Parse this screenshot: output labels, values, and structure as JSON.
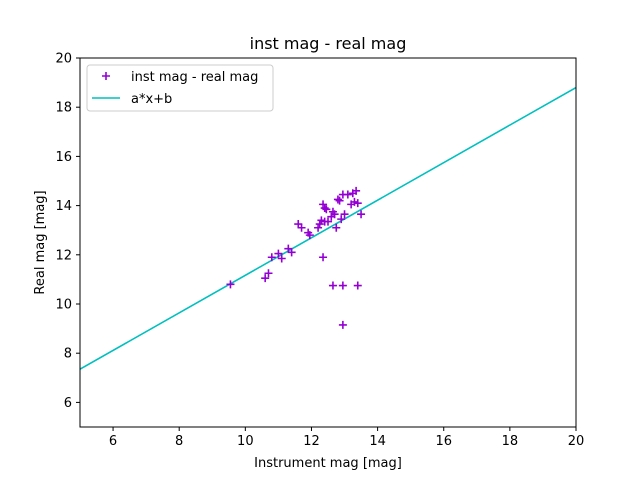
{
  "chart_data": {
    "type": "scatter",
    "title": "inst mag - real mag",
    "xlabel": "Instrument mag [mag]",
    "ylabel": "Real mag [mag]",
    "xlim": [
      5,
      20
    ],
    "ylim": [
      5,
      20
    ],
    "xticks": [
      "6",
      "8",
      "10",
      "12",
      "14",
      "16",
      "18",
      "20"
    ],
    "yticks": [
      "6",
      "8",
      "10",
      "12",
      "14",
      "16",
      "18",
      "20"
    ],
    "grid": false,
    "legend_position": "top-left",
    "series": [
      {
        "name": "inst mag - real mag",
        "kind": "scatter",
        "marker": "plus",
        "color": "#9400d3",
        "x": [
          9.55,
          10.6,
          10.7,
          10.8,
          11.0,
          11.1,
          11.3,
          11.4,
          11.6,
          11.7,
          11.9,
          11.95,
          12.2,
          12.25,
          12.3,
          12.35,
          12.4,
          12.4,
          12.45,
          12.5,
          12.6,
          12.65,
          12.7,
          12.75,
          12.8,
          12.85,
          12.9,
          12.95,
          13.0,
          13.1,
          13.2,
          13.25,
          13.3,
          13.35,
          13.4,
          13.5,
          12.35,
          12.65,
          12.95,
          13.4,
          12.95
        ],
        "y": [
          10.8,
          11.05,
          11.25,
          11.9,
          12.05,
          11.85,
          12.25,
          12.1,
          13.25,
          13.1,
          12.9,
          12.8,
          13.1,
          13.25,
          13.4,
          14.05,
          13.9,
          13.35,
          13.85,
          13.35,
          13.55,
          13.75,
          13.65,
          13.1,
          14.25,
          14.2,
          13.45,
          14.45,
          13.65,
          14.45,
          14.05,
          14.5,
          14.15,
          14.6,
          14.1,
          13.65,
          11.9,
          10.75,
          10.75,
          10.75,
          9.15
        ]
      },
      {
        "name": "a*x+b",
        "kind": "line",
        "color": "#00bfbf",
        "x": [
          5,
          20
        ],
        "y": [
          7.35,
          18.8
        ]
      }
    ]
  }
}
